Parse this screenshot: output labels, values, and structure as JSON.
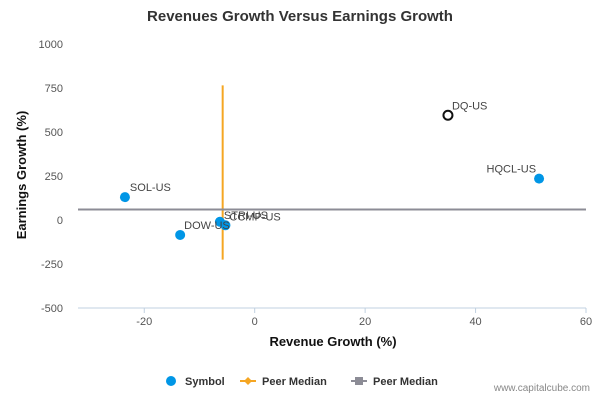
{
  "chart_data": {
    "type": "scatter",
    "title": "Revenues Growth Versus Earnings Growth",
    "xlabel": "Revenue Growth (%)",
    "ylabel": "Earnings Growth (%)",
    "xlim": [
      -32,
      60
    ],
    "ylim": [
      -500,
      1000
    ],
    "xticks": [
      -20,
      0,
      20,
      40,
      60
    ],
    "yticks": [
      -500,
      -250,
      0,
      250,
      500,
      750,
      1000
    ],
    "points": [
      {
        "label": "DQ-US",
        "x": 35,
        "y": 595,
        "highlight": true
      },
      {
        "label": "HQCL-US",
        "x": 51.5,
        "y": 235,
        "highlight": false
      },
      {
        "label": "SOL-US",
        "x": -23.5,
        "y": 130,
        "highlight": false
      },
      {
        "label": "STRI-US",
        "x": -6.3,
        "y": -10,
        "highlight": false
      },
      {
        "label": "CCMP-US",
        "x": -5.3,
        "y": -30,
        "highlight": false
      },
      {
        "label": "DOW-US",
        "x": -13.5,
        "y": -85,
        "highlight": false
      }
    ],
    "peer_median_x": {
      "x": -5.8,
      "y_range": [
        -225,
        765
      ]
    },
    "peer_median_y": {
      "y": 60
    },
    "legend": [
      {
        "name": "Symbol",
        "color": "#0096e6"
      },
      {
        "name": "Peer Median",
        "color": "#f5a623"
      },
      {
        "name": "Peer Median",
        "color": "#8c8c96"
      }
    ],
    "legend_position": "bottom",
    "grid": false
  },
  "credit": "www.capitalcube.com"
}
